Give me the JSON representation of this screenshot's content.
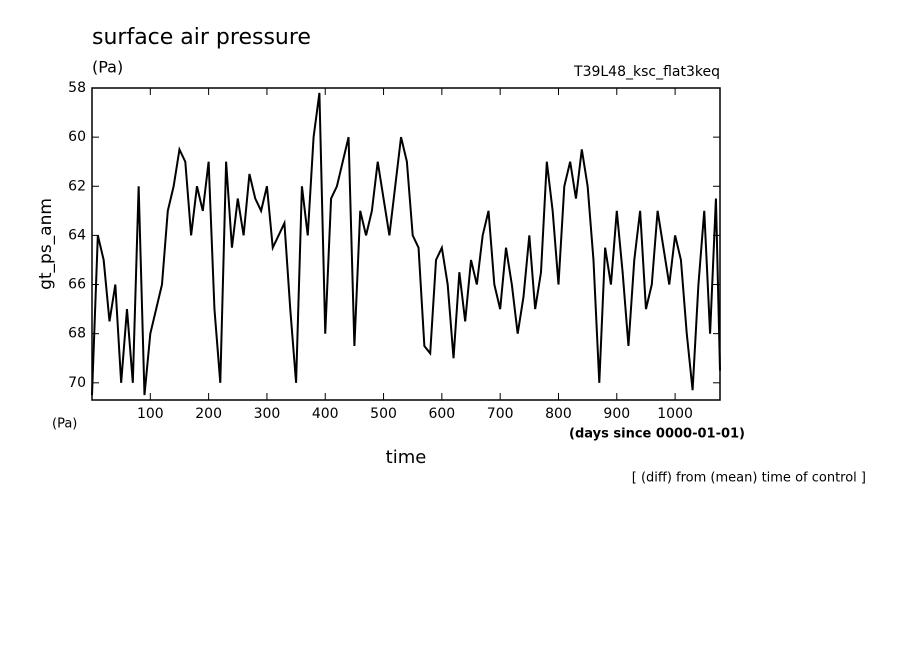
{
  "chart_data": {
    "type": "line",
    "title": "surface air pressure",
    "unit_label": "(Pa)",
    "experiment": "T39L48_ksc_flat3keq",
    "y_label": "gt_ps_anm",
    "y_unit": "(Pa)",
    "x_unit": "(days since 0000-01-01)",
    "x_label": "time",
    "footnote": "[ (diff) from (mean) time of control ]",
    "xlim": [
      0,
      1077
    ],
    "ylim": [
      70.7,
      58
    ],
    "xticks": [
      100,
      200,
      300,
      400,
      500,
      600,
      700,
      800,
      900,
      1000
    ],
    "yticks": [
      58,
      60,
      62,
      64,
      66,
      68,
      70
    ],
    "x": [
      0,
      10,
      20,
      30,
      40,
      50,
      60,
      70,
      80,
      90,
      100,
      110,
      120,
      130,
      140,
      150,
      160,
      170,
      180,
      190,
      200,
      210,
      220,
      230,
      240,
      250,
      260,
      270,
      280,
      290,
      300,
      310,
      320,
      330,
      340,
      350,
      360,
      370,
      380,
      390,
      400,
      410,
      420,
      430,
      440,
      450,
      460,
      470,
      480,
      490,
      500,
      510,
      520,
      530,
      540,
      550,
      560,
      570,
      580,
      590,
      600,
      610,
      620,
      630,
      640,
      650,
      660,
      670,
      680,
      690,
      700,
      710,
      720,
      730,
      740,
      750,
      760,
      770,
      780,
      790,
      800,
      810,
      820,
      830,
      840,
      850,
      860,
      870,
      880,
      890,
      900,
      910,
      920,
      930,
      940,
      950,
      960,
      970,
      980,
      990,
      1000,
      1010,
      1020,
      1030,
      1040,
      1050,
      1060,
      1070,
      1077
    ],
    "series": [
      {
        "color": "#000000",
        "values": [
          70.5,
          64,
          65,
          67.5,
          66,
          70,
          67,
          70,
          62,
          70.5,
          68,
          67,
          66,
          63,
          62,
          60.5,
          61,
          64,
          62,
          63,
          61,
          67,
          70,
          61,
          64.5,
          62.5,
          64,
          61.5,
          62.5,
          63,
          62,
          64.5,
          64,
          63.5,
          67,
          70,
          62,
          64,
          60,
          58.2,
          68,
          62.5,
          62,
          61,
          60,
          68.5,
          63,
          64,
          63,
          61,
          62.5,
          64,
          62,
          60,
          61,
          64,
          64.5,
          68.5,
          68.8,
          65,
          64.5,
          66,
          69,
          65.5,
          67.5,
          65,
          66,
          64,
          63,
          66,
          67,
          64.5,
          66,
          68,
          66.5,
          64,
          67,
          65.5,
          61,
          63,
          66,
          62,
          61,
          62.5,
          60.5,
          62,
          65,
          70,
          64.5,
          66,
          63,
          65.5,
          68.5,
          65,
          63,
          67,
          66,
          63,
          64.5,
          66,
          64,
          65,
          68,
          70.3,
          66,
          63,
          68,
          62.5,
          69.5
        ]
      }
    ]
  }
}
